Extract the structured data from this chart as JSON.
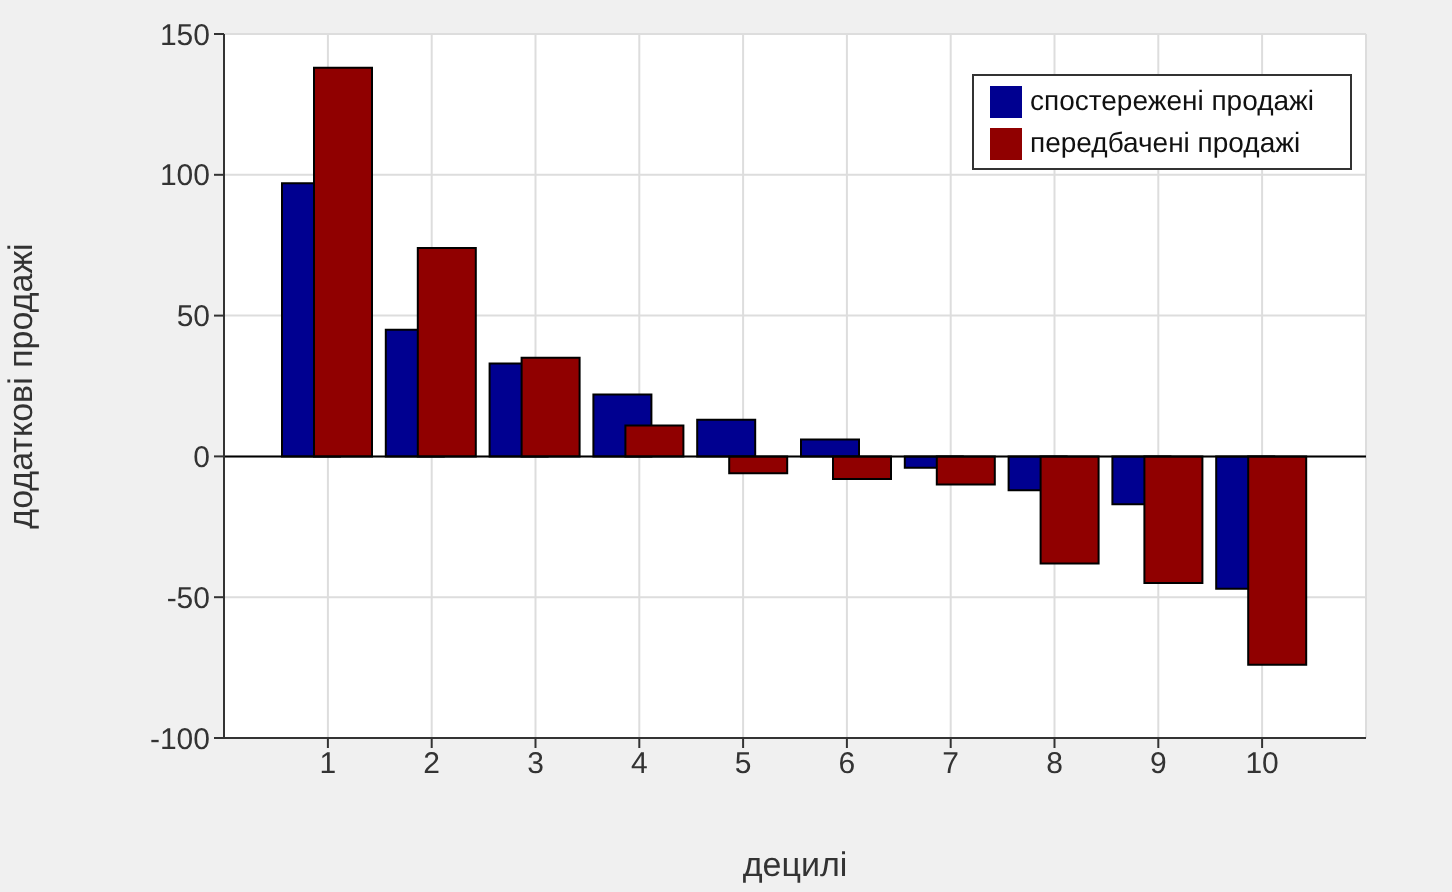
{
  "chart_data": {
    "type": "bar",
    "xlabel": "децилі",
    "ylabel": "додаткові продажі",
    "categories": [
      "1",
      "2",
      "3",
      "4",
      "5",
      "6",
      "7",
      "8",
      "9",
      "10"
    ],
    "series": [
      {
        "name": "спостережені продажі",
        "color": "#000090",
        "values": [
          97,
          45,
          33,
          22,
          13,
          6,
          -4,
          -12,
          -17,
          -47
        ]
      },
      {
        "name": "передбачені продажі",
        "color": "#900000",
        "values": [
          138,
          74,
          35,
          11,
          -6,
          -8,
          -10,
          -38,
          -45,
          -74
        ]
      }
    ],
    "ylim": [
      -100,
      150
    ],
    "yticks": [
      -100,
      -50,
      0,
      50,
      100,
      150
    ],
    "grid": true,
    "legend": "top right"
  }
}
